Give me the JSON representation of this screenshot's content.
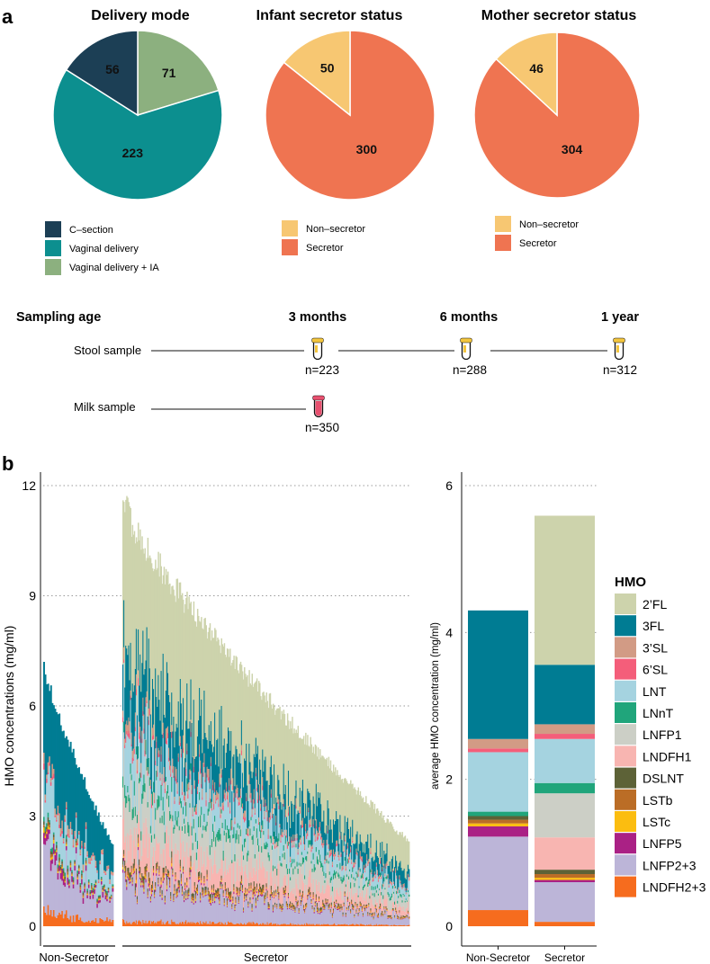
{
  "panel_labels": {
    "a": "a",
    "b": "b"
  },
  "colors": {
    "csection": "#1c3f55",
    "vaginal": "#0c8f8f",
    "vaginal_ia": "#8cb07f",
    "nonsecretor": "#f7c772",
    "secretor": "#ef7451",
    "stool_tube": "#f3c53d",
    "milk_tube": "#e8506f"
  },
  "sampling": {
    "title": "Sampling age",
    "ages": [
      "3 months",
      "6 months",
      "1 year"
    ],
    "stool_label": "Stool sample",
    "milk_label": "Milk sample",
    "stool_counts": [
      "n=223",
      "n=288",
      "n=312"
    ],
    "milk_count": "n=350"
  },
  "chart_data": [
    {
      "type": "pie",
      "title": "Delivery mode",
      "slices": [
        {
          "label": "C–section",
          "value": 56,
          "color": "#1c3f55"
        },
        {
          "label": "Vaginal delivery",
          "value": 223,
          "color": "#0c8f8f"
        },
        {
          "label": "Vaginal delivery + IA",
          "value": 71,
          "color": "#8cb07f"
        }
      ],
      "slice_order": [
        2,
        1,
        0
      ]
    },
    {
      "type": "pie",
      "title": "Infant secretor status",
      "slices": [
        {
          "label": "Non–secretor",
          "value": 50,
          "color": "#f7c772"
        },
        {
          "label": "Secretor",
          "value": 300,
          "color": "#ef7451"
        }
      ],
      "slice_order": [
        1,
        0
      ]
    },
    {
      "type": "pie",
      "title": "Mother secretor status",
      "slices": [
        {
          "label": "Non–secretor",
          "value": 46,
          "color": "#f7c772"
        },
        {
          "label": "Secretor",
          "value": 304,
          "color": "#ef7451"
        }
      ],
      "slice_order": [
        1,
        0
      ]
    },
    {
      "type": "bar",
      "subtype": "stacked-per-sample",
      "ylabel": "HMO concentrations (mg/ml)",
      "ylim": [
        0,
        12
      ],
      "yticks": [
        0,
        3,
        6,
        9,
        12
      ],
      "groups": [
        {
          "name": "Non-Secretor",
          "n": 50,
          "max_total": 7.2,
          "min_total": 2.2
        },
        {
          "name": "Secretor",
          "n": 300,
          "max_total": 11.6,
          "min_total": 2.3
        }
      ]
    },
    {
      "type": "bar",
      "subtype": "stacked",
      "ylabel": "average HMO concentration (mg/ml)",
      "ylim": [
        0,
        6
      ],
      "yticks": [
        0,
        2,
        4,
        6
      ],
      "categories": [
        "Non-Secretor",
        "Secretor"
      ],
      "legend_title": "HMO",
      "series": [
        {
          "name": "2’FL",
          "color": "#cdd3ac",
          "values": [
            0,
            2.03
          ]
        },
        {
          "name": "3FL",
          "color": "#007c93",
          "values": [
            1.75,
            0.81
          ]
        },
        {
          "name": "3’SL",
          "color": "#d29b85",
          "values": [
            0.13,
            0.13
          ]
        },
        {
          "name": "6’SL",
          "color": "#f45e7a",
          "values": [
            0.05,
            0.07
          ]
        },
        {
          "name": "LNT",
          "color": "#a5d3e0",
          "values": [
            0.81,
            0.6
          ]
        },
        {
          "name": "LNnT",
          "color": "#20a57b",
          "values": [
            0.06,
            0.14
          ]
        },
        {
          "name": "LNFP1",
          "color": "#cccfc6",
          "values": [
            0,
            0.6
          ]
        },
        {
          "name": "LNDFH1",
          "color": "#f8b5b1",
          "values": [
            0,
            0.44
          ]
        },
        {
          "name": "DSLNT",
          "color": "#5d6237",
          "values": [
            0.05,
            0.06
          ]
        },
        {
          "name": "LSTb",
          "color": "#bb6d26",
          "values": [
            0.05,
            0.05
          ]
        },
        {
          "name": "LSTc",
          "color": "#fbbd10",
          "values": [
            0.04,
            0.03
          ]
        },
        {
          "name": "LNFP5",
          "color": "#aa2185",
          "values": [
            0.14,
            0.03
          ]
        },
        {
          "name": "LNFP2+3",
          "color": "#bcb5d8",
          "values": [
            1.0,
            0.54
          ]
        },
        {
          "name": "LNDFH2+3",
          "color": "#f66c1e",
          "values": [
            0.22,
            0.06
          ]
        }
      ]
    }
  ]
}
